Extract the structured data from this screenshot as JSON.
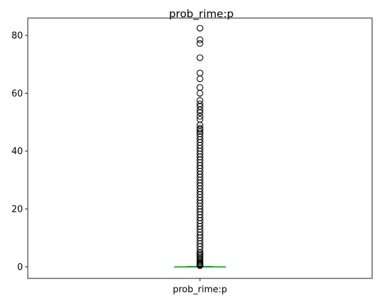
{
  "chart_data": {
    "type": "box",
    "title": "prob_rime:p",
    "categories": [
      "prob_rime:p"
    ],
    "xlabel": "",
    "ylabel": "",
    "ylim": [
      -4,
      86
    ],
    "yticks": [
      0,
      20,
      40,
      60,
      80
    ],
    "grid": false,
    "box": {
      "min": 0,
      "q1": 0,
      "median": 0,
      "q3": 0,
      "whisker_high": 0.2
    },
    "outliers": [
      82.5,
      78.5,
      77.2,
      72.3,
      67.0,
      65.0,
      62.0,
      60.0,
      57.5,
      56.3,
      55.4,
      54.2,
      53.3,
      52.0,
      51.0,
      49.0,
      48.0,
      47.5,
      46.8,
      46.0,
      45.0,
      44.0,
      43.0,
      42.0,
      41.0,
      40.0,
      39.0,
      38.0,
      37.0,
      36.0,
      35.0,
      34.0,
      33.0,
      32.0,
      31.0,
      30.0,
      29.0,
      28.0,
      27.0,
      26.0,
      25.0,
      24.0,
      23.0,
      22.0,
      21.0,
      20.0,
      19.0,
      18.0,
      17.0,
      16.0,
      15.0,
      14.0,
      13.0,
      12.0,
      11.0,
      10.0,
      9.0,
      8.0,
      7.0,
      6.0,
      5.0,
      4.5,
      4.0,
      3.5,
      3.0,
      2.5,
      2.0,
      1.6,
      1.2,
      0.9,
      0.6,
      0.4
    ],
    "colors": {
      "median": "#2ca02c",
      "box": "#1f77b4",
      "outlier": "#000000",
      "axes": "#000000"
    }
  }
}
